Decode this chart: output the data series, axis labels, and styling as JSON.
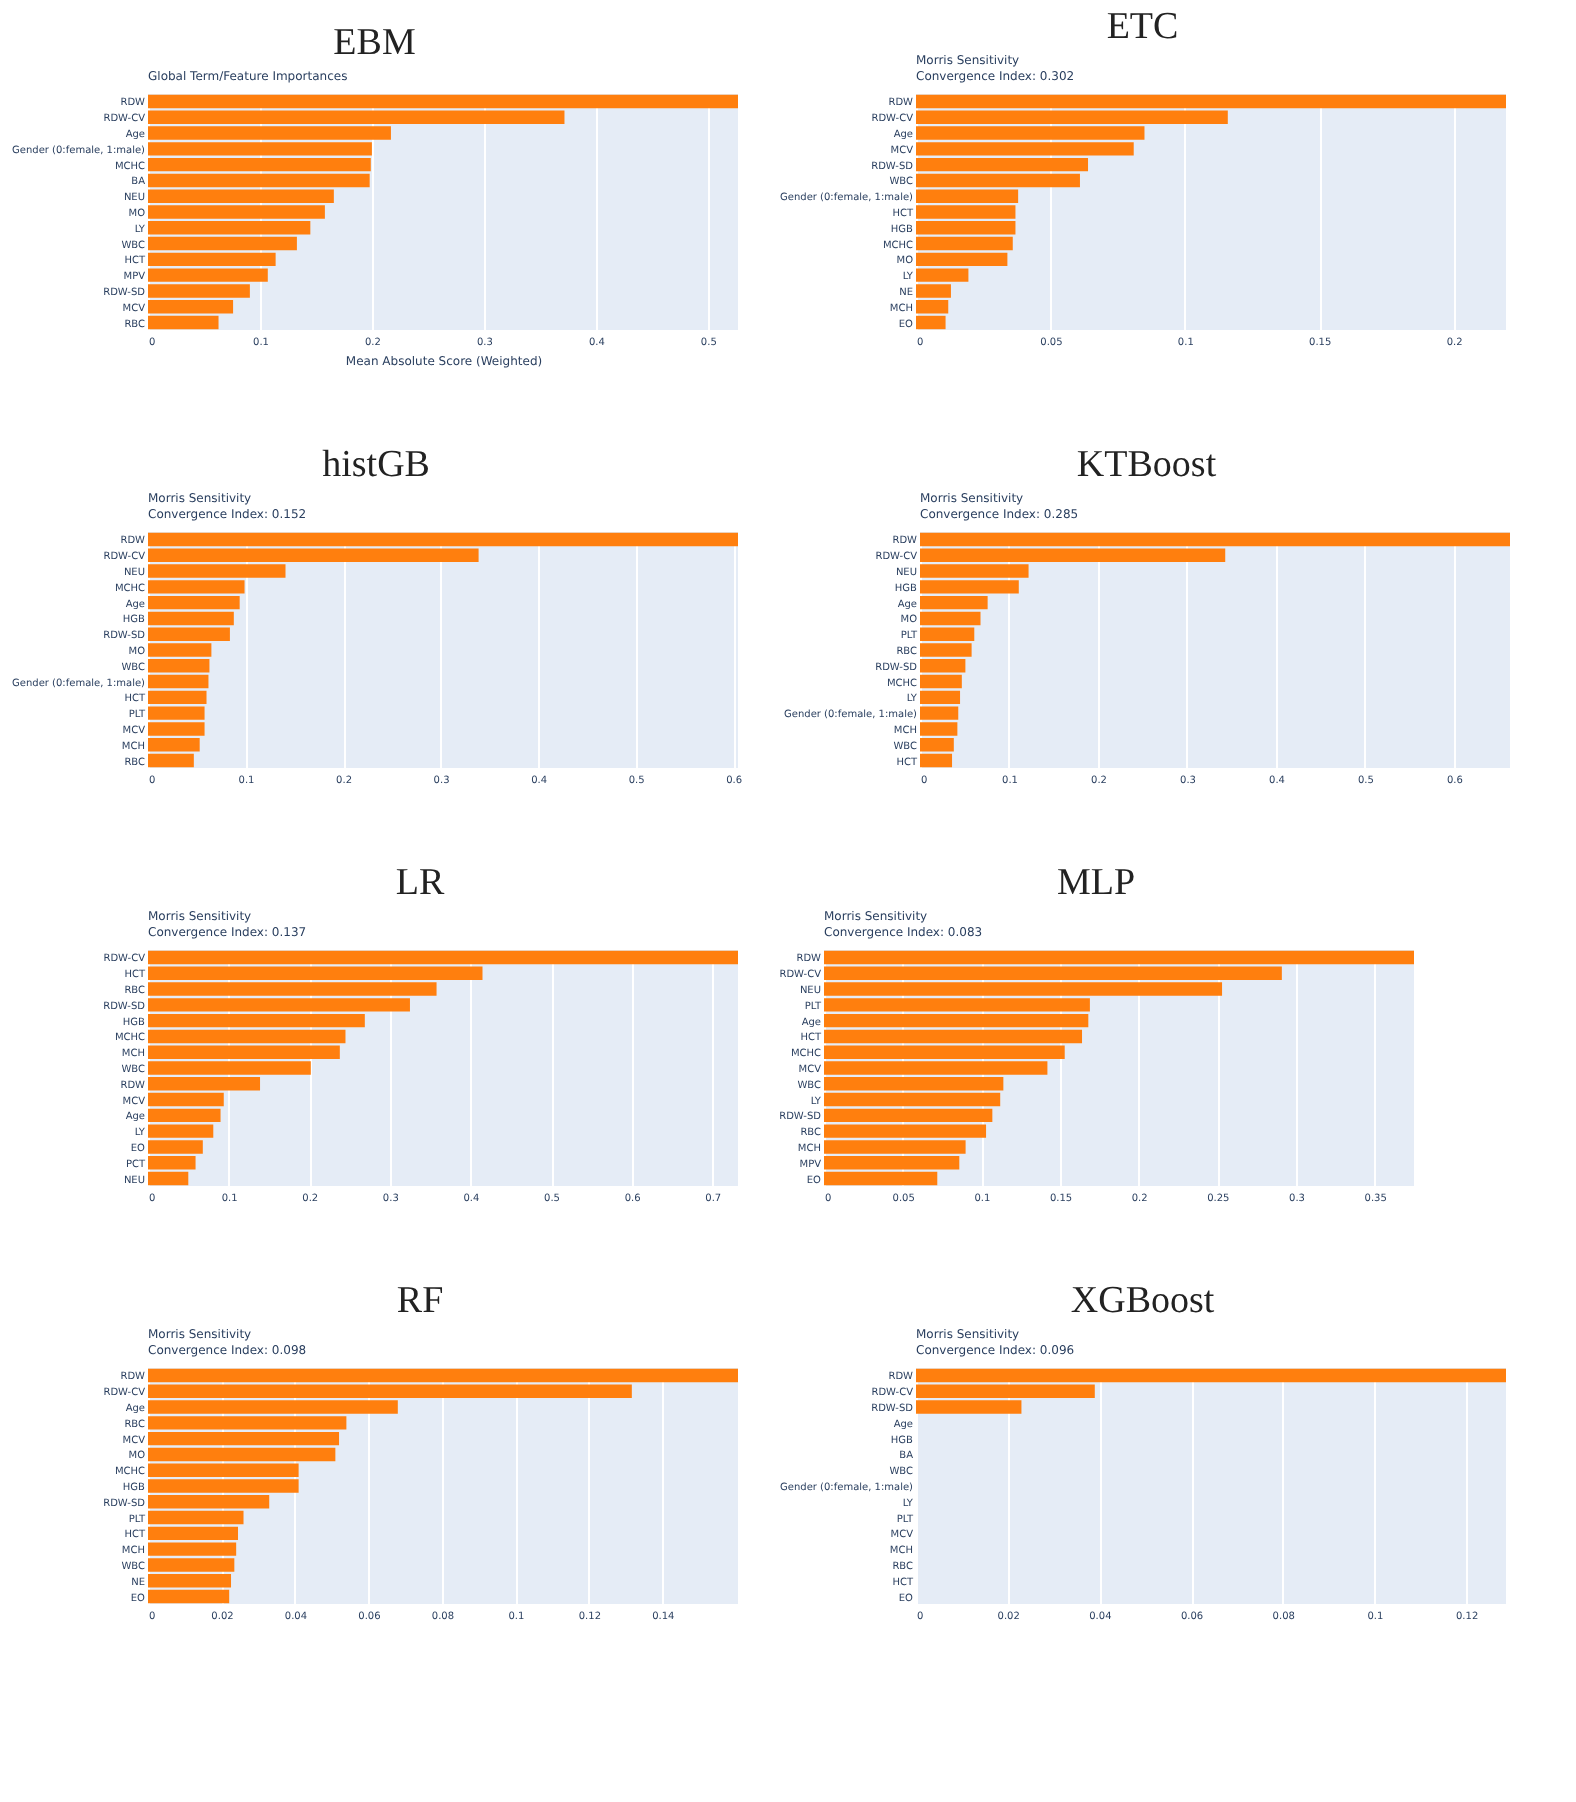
{
  "chart_data": [
    {
      "type": "bar",
      "orientation": "horizontal",
      "title": "EBM",
      "subtitle": "Global Term/Feature Importances",
      "xlabel": "Mean Absolute Score (Weighted)",
      "color": "#ff7f0e",
      "grid": "x",
      "xlim": [
        0,
        0.527
      ],
      "xticks": [
        0,
        0.1,
        0.2,
        0.3,
        0.4,
        0.5
      ],
      "categories": [
        "RDW",
        "RDW-CV",
        "Age",
        "Gender (0:female, 1:male)",
        "MCHC",
        "BA",
        "NEU",
        "MO",
        "LY",
        "WBC",
        "HCT",
        "MPV",
        "RDW-SD",
        "MCV",
        "RBC"
      ],
      "values": [
        0.527,
        0.372,
        0.217,
        0.2,
        0.199,
        0.198,
        0.166,
        0.158,
        0.145,
        0.133,
        0.114,
        0.107,
        0.091,
        0.076,
        0.063
      ]
    },
    {
      "type": "bar",
      "orientation": "horizontal",
      "title": "ETC",
      "subtitle": "Morris Sensitivity\nConvergence Index: 0.302",
      "color": "#ff7f0e",
      "grid": "x",
      "xlim": [
        0,
        0.2195
      ],
      "xticks": [
        0,
        0.05,
        0.1,
        0.15,
        0.2
      ],
      "categories": [
        "RDW",
        "RDW-CV",
        "Age",
        "MCV",
        "RDW-SD",
        "WBC",
        "Gender (0:female, 1:male)",
        "HCT",
        "HGB",
        "MCHC",
        "MO",
        "LY",
        "NE",
        "MCH",
        "EO"
      ],
      "values": [
        0.2195,
        0.116,
        0.085,
        0.081,
        0.064,
        0.061,
        0.038,
        0.037,
        0.037,
        0.036,
        0.034,
        0.0195,
        0.013,
        0.012,
        0.011
      ]
    },
    {
      "type": "bar",
      "orientation": "horizontal",
      "title": "histGB",
      "subtitle": "Morris Sensitivity\nConvergence Index: 0.152",
      "color": "#ff7f0e",
      "grid": "x",
      "xlim": [
        0,
        0.605
      ],
      "xticks": [
        0,
        0.1,
        0.2,
        0.3,
        0.4,
        0.5,
        0.6
      ],
      "categories": [
        "RDW",
        "RDW-CV",
        "NEU",
        "MCHC",
        "Age",
        "HGB",
        "RDW-SD",
        "MO",
        "WBC",
        "Gender (0:female, 1:male)",
        "HCT",
        "PLT",
        "MCV",
        "MCH",
        "RBC"
      ],
      "values": [
        0.605,
        0.339,
        0.141,
        0.099,
        0.094,
        0.088,
        0.084,
        0.065,
        0.063,
        0.062,
        0.06,
        0.058,
        0.058,
        0.053,
        0.047
      ]
    },
    {
      "type": "bar",
      "orientation": "horizontal",
      "title": "KTBoost",
      "subtitle": "Morris Sensitivity\nConvergence Index: 0.285",
      "color": "#ff7f0e",
      "grid": "x",
      "xlim": [
        0,
        0.663
      ],
      "xticks": [
        0,
        0.1,
        0.2,
        0.3,
        0.4,
        0.5,
        0.6
      ],
      "categories": [
        "RDW",
        "RDW-CV",
        "NEU",
        "HGB",
        "Age",
        "MO",
        "PLT",
        "RBC",
        "RDW-SD",
        "MCHC",
        "LY",
        "Gender (0:female, 1:male)",
        "MCH",
        "WBC",
        "HCT"
      ],
      "values": [
        0.663,
        0.343,
        0.122,
        0.111,
        0.076,
        0.068,
        0.061,
        0.058,
        0.051,
        0.047,
        0.045,
        0.043,
        0.042,
        0.038,
        0.036
      ]
    },
    {
      "type": "bar",
      "orientation": "horizontal",
      "title": "LR",
      "subtitle": "Morris Sensitivity\nConvergence Index: 0.137",
      "color": "#ff7f0e",
      "grid": "x",
      "xlim": [
        0,
        0.732
      ],
      "xticks": [
        0,
        0.1,
        0.2,
        0.3,
        0.4,
        0.5,
        0.6,
        0.7
      ],
      "categories": [
        "RDW-CV",
        "HCT",
        "RBC",
        "RDW-SD",
        "HGB",
        "MCHC",
        "MCH",
        "WBC",
        "RDW",
        "MCV",
        "Age",
        "LY",
        "EO",
        "PCT",
        "NEU"
      ],
      "values": [
        0.732,
        0.415,
        0.358,
        0.325,
        0.269,
        0.245,
        0.238,
        0.202,
        0.139,
        0.094,
        0.09,
        0.081,
        0.068,
        0.059,
        0.05
      ]
    },
    {
      "type": "bar",
      "orientation": "horizontal",
      "title": "MLP",
      "subtitle": "Morris Sensitivity\nConvergence Index: 0.083",
      "color": "#ff7f0e",
      "grid": "x",
      "xlim": [
        0,
        0.375
      ],
      "xticks": [
        0,
        0.05,
        0.1,
        0.15,
        0.2,
        0.25,
        0.3,
        0.35
      ],
      "categories": [
        "RDW",
        "RDW-CV",
        "NEU",
        "PLT",
        "Age",
        "HCT",
        "MCHC",
        "MCV",
        "WBC",
        "LY",
        "RDW-SD",
        "RBC",
        "MCH",
        "MPV",
        "EO"
      ],
      "values": [
        0.375,
        0.291,
        0.253,
        0.169,
        0.168,
        0.164,
        0.153,
        0.142,
        0.114,
        0.112,
        0.107,
        0.103,
        0.09,
        0.086,
        0.072
      ]
    },
    {
      "type": "bar",
      "orientation": "horizontal",
      "title": "RF",
      "subtitle": "Morris Sensitivity\nConvergence Index: 0.098",
      "color": "#ff7f0e",
      "grid": "x",
      "xlim": [
        0,
        0.1606
      ],
      "xticks": [
        0,
        0.02,
        0.04,
        0.06,
        0.08,
        0.1,
        0.12,
        0.14
      ],
      "categories": [
        "RDW",
        "RDW-CV",
        "Age",
        "RBC",
        "MCV",
        "MO",
        "MCHC",
        "HGB",
        "RDW-SD",
        "PLT",
        "HCT",
        "MCH",
        "WBC",
        "NE",
        "EO"
      ],
      "values": [
        0.1606,
        0.1317,
        0.068,
        0.054,
        0.052,
        0.051,
        0.041,
        0.041,
        0.033,
        0.026,
        0.0245,
        0.024,
        0.0235,
        0.0226,
        0.0221
      ]
    },
    {
      "type": "bar",
      "orientation": "horizontal",
      "title": "XGBoost",
      "subtitle": "Morris Sensitivity\nConvergence Index: 0.096",
      "color": "#ff7f0e",
      "grid": "x",
      "xlim": [
        0,
        0.1287
      ],
      "xticks": [
        0,
        0.02,
        0.04,
        0.06,
        0.08,
        0.1,
        0.12
      ],
      "categories": [
        "RDW",
        "RDW-CV",
        "RDW-SD",
        "Age",
        "HGB",
        "BA",
        "WBC",
        "Gender (0:female, 1:male)",
        "LY",
        "PLT",
        "MCV",
        "MCH",
        "RBC",
        "HCT",
        "EO"
      ],
      "values": [
        0.1287,
        0.039,
        0.023,
        0,
        0,
        0,
        0,
        0,
        0,
        0,
        0,
        0,
        0,
        0,
        0
      ]
    }
  ]
}
